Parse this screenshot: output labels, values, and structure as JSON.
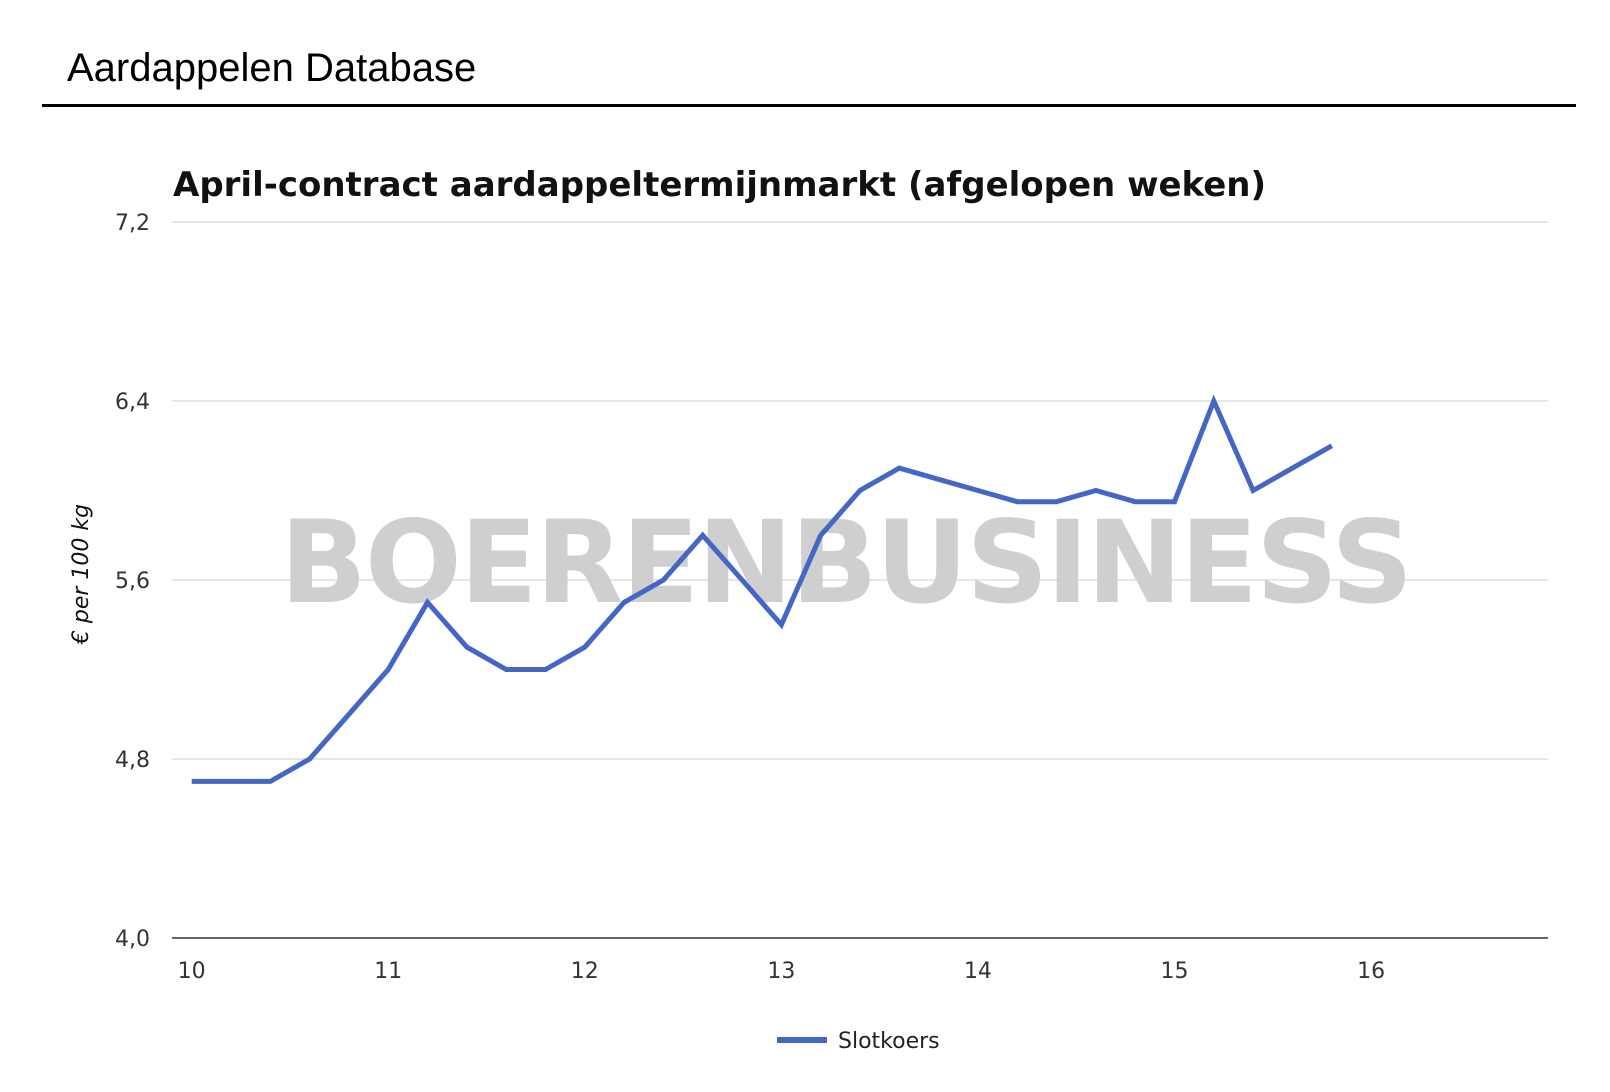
{
  "header": {
    "title": "Aardappelen Database"
  },
  "watermark": "BOERENBUSINESS",
  "colors": {
    "series": "#4466c4",
    "grid": "#cccccc",
    "axis": "#333333",
    "watermark": "#cfcfcf"
  },
  "chart_data": {
    "type": "line",
    "title": "April-contract aardappeltermijnmarkt (afgelopen weken)",
    "xlabel": "",
    "ylabel": "€ per 100 kg",
    "xlim": [
      9.9,
      16.9
    ],
    "ylim": [
      4.0,
      7.2
    ],
    "x_ticks": [
      10,
      11,
      12,
      13,
      14,
      15,
      16
    ],
    "y_ticks": [
      4.0,
      4.8,
      5.6,
      6.4,
      7.2
    ],
    "y_tick_labels": [
      "4,0",
      "4,8",
      "5,6",
      "6,4",
      "7,2"
    ],
    "grid": true,
    "legend": "bottom",
    "series": [
      {
        "name": "Slotkoers",
        "color": "#4466c4",
        "x": [
          10.0,
          10.2,
          10.4,
          10.6,
          10.8,
          11.0,
          11.2,
          11.4,
          11.6,
          11.8,
          12.0,
          12.2,
          12.4,
          12.6,
          12.8,
          13.0,
          13.2,
          13.4,
          13.6,
          13.8,
          14.0,
          14.2,
          14.4,
          14.6,
          14.8,
          15.0,
          15.2,
          15.4,
          15.6,
          15.8
        ],
        "values": [
          4.7,
          4.7,
          4.7,
          4.8,
          5.0,
          5.2,
          5.5,
          5.3,
          5.2,
          5.2,
          5.3,
          5.5,
          5.6,
          5.8,
          5.6,
          5.4,
          5.8,
          6.0,
          6.1,
          6.05,
          6.0,
          5.95,
          5.95,
          6.0,
          5.95,
          5.95,
          6.4,
          6.0,
          6.1,
          6.2
        ]
      }
    ]
  }
}
